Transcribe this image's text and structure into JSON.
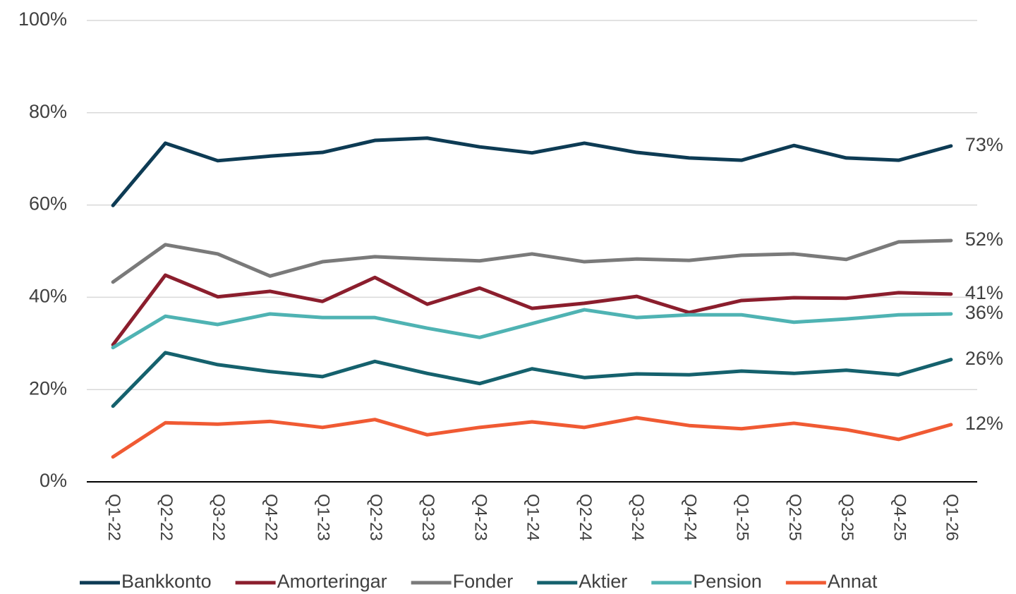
{
  "chart_data": {
    "type": "line",
    "categories": [
      "Q1-22",
      "Q2-22",
      "Q3-22",
      "Q4-22",
      "Q1-23",
      "Q2-23",
      "Q3-23",
      "Q4-23",
      "Q1-24",
      "Q2-24",
      "Q3-24",
      "Q4-24",
      "Q1-25",
      "Q2-25",
      "Q3-25",
      "Q4-25",
      "Q1-26"
    ],
    "ylim": [
      0,
      100
    ],
    "yticks": [
      {
        "value": 0,
        "label": "0%"
      },
      {
        "value": 20,
        "label": "20%"
      },
      {
        "value": 40,
        "label": "40%"
      },
      {
        "value": 60,
        "label": "60%"
      },
      {
        "value": 80,
        "label": "80%"
      },
      {
        "value": 100,
        "label": "100%"
      }
    ],
    "grid": true,
    "legend": "bottom",
    "series": [
      {
        "name": "Bankkonto",
        "color": "#0d3b54",
        "values": [
          59.9,
          73.4,
          69.6,
          70.6,
          71.4,
          74.0,
          74.5,
          72.6,
          71.3,
          73.4,
          71.4,
          70.2,
          69.7,
          72.9,
          70.2,
          69.7,
          72.8
        ],
        "value_labels": [
          null,
          null,
          null,
          null,
          null,
          null,
          null,
          null,
          null,
          null,
          null,
          null,
          null,
          null,
          null,
          null,
          "73%"
        ]
      },
      {
        "name": "Amorteringar",
        "color": "#8b1e2d",
        "values": [
          29.7,
          44.8,
          40.1,
          41.3,
          39.1,
          44.3,
          38.5,
          42.0,
          37.6,
          38.7,
          40.2,
          36.7,
          39.3,
          39.9,
          39.8,
          41.0,
          40.7
        ],
        "value_labels": [
          null,
          null,
          null,
          null,
          null,
          null,
          null,
          null,
          null,
          null,
          null,
          null,
          null,
          null,
          null,
          null,
          "41%"
        ]
      },
      {
        "name": "Fonder",
        "color": "#7a7a7a",
        "values": [
          43.3,
          51.4,
          49.4,
          44.6,
          47.7,
          48.8,
          48.3,
          47.9,
          49.4,
          47.7,
          48.3,
          48.0,
          49.1,
          49.4,
          48.2,
          52.0,
          52.3
        ],
        "value_labels": [
          null,
          null,
          null,
          null,
          null,
          null,
          null,
          null,
          null,
          null,
          null,
          null,
          null,
          null,
          null,
          null,
          "52%"
        ]
      },
      {
        "name": "Aktier",
        "color": "#15616d",
        "values": [
          16.4,
          28.0,
          25.4,
          23.9,
          22.8,
          26.1,
          23.5,
          21.3,
          24.5,
          22.6,
          23.4,
          23.2,
          24.0,
          23.5,
          24.2,
          23.2,
          26.5
        ],
        "value_labels": [
          null,
          null,
          null,
          null,
          null,
          null,
          null,
          null,
          null,
          null,
          null,
          null,
          null,
          null,
          null,
          null,
          "26%"
        ]
      },
      {
        "name": "Pension",
        "color": "#4fb3b3",
        "values": [
          29.1,
          35.9,
          34.1,
          36.4,
          35.6,
          35.6,
          33.3,
          31.3,
          34.3,
          37.3,
          35.6,
          36.2,
          36.2,
          34.6,
          35.3,
          36.2,
          36.4
        ],
        "value_labels": [
          null,
          null,
          null,
          null,
          null,
          null,
          null,
          null,
          null,
          null,
          null,
          null,
          null,
          null,
          null,
          null,
          "36%"
        ]
      },
      {
        "name": "Annat",
        "color": "#f05a33",
        "values": [
          5.4,
          12.8,
          12.5,
          13.1,
          11.8,
          13.5,
          10.2,
          11.8,
          13.0,
          11.8,
          13.9,
          12.2,
          11.5,
          12.7,
          11.3,
          9.2,
          12.4
        ],
        "value_labels": [
          null,
          null,
          null,
          null,
          null,
          null,
          null,
          null,
          null,
          null,
          null,
          null,
          null,
          null,
          null,
          null,
          "12%"
        ]
      }
    ]
  }
}
